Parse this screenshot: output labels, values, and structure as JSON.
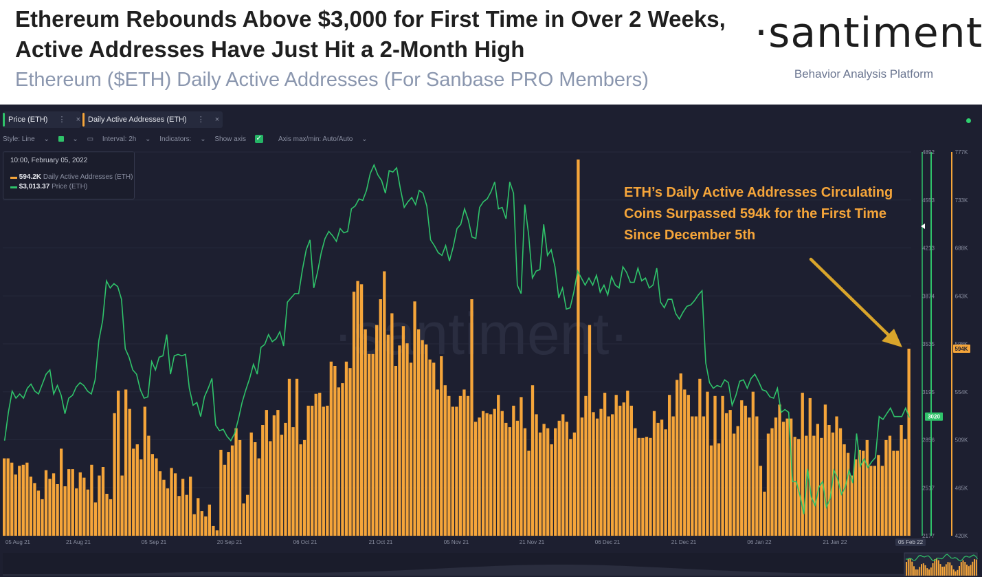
{
  "header": {
    "title": "Ethereum Rebounds Above $3,000 for First Time in Over 2 Weeks, Active Addresses Have Just Hit a 2-Month High",
    "subtitle": "Ethereum ($ETH) Daily Active Addresses (For Sanbase PRO Members)",
    "logo": "·santiment·",
    "logo_sub": "Behavior Analysis Platform"
  },
  "chips": [
    {
      "label": "Price (ETH)",
      "color": "#2fc36a"
    },
    {
      "label": "Daily Active Addresses (ETH)",
      "color": "#f5a53a"
    }
  ],
  "chip_controls": {
    "more": "⋮",
    "close": "×"
  },
  "toolbar": {
    "style": "Style: Line",
    "interval": "Interval: 2h",
    "indicators": "Indicators:",
    "show_axis": "Show axis",
    "axis_maxmin": "Axis max/min: Auto/Auto"
  },
  "tooltip": {
    "date": "10:00, February 05, 2022",
    "daa_value": "594.2K",
    "daa_label": "Daily Active Addresses (ETH)",
    "price_value": "$3,013.37",
    "price_label": "Price (ETH)"
  },
  "annotation": "ETH’s Daily Active Addresses Circulating Coins Surpassed 594k for the First Time Since December 5th",
  "watermark": "·santiment·",
  "chart_data": {
    "type": "bar",
    "colors": {
      "daa": "#f5a53a",
      "price": "#2fc36a",
      "background": "#1d1f30"
    },
    "x_ticks": [
      "05 Aug 21",
      "21 Aug 21",
      "05 Sep 21",
      "20 Sep 21",
      "06 Oct 21",
      "21 Oct 21",
      "05 Nov 21",
      "21 Nov 21",
      "06 Dec 21",
      "21 Dec 21",
      "06 Jan 22",
      "21 Jan 22",
      "05 Feb 22"
    ],
    "price_axis": {
      "ticks": [
        "4892",
        "4553",
        "4213",
        "3874",
        "3535",
        "3195",
        "2856",
        "2517",
        "2177"
      ],
      "ylim": [
        2177,
        4892
      ],
      "current_label": "3020"
    },
    "daa_axis": {
      "ticks": [
        "777K",
        "733K",
        "688K",
        "643K",
        "598K",
        "554K",
        "509K",
        "465K",
        "420K"
      ],
      "ylim": [
        420000,
        777000
      ],
      "current_label": "594K"
    },
    "series": [
      {
        "name": "Daily Active Addresses (ETH)",
        "kind": "bar",
        "values": [
          492,
          492,
          488,
          477,
          485,
          486,
          488,
          475,
          469,
          462,
          454,
          481,
          473,
          478,
          468,
          501,
          466,
          482,
          482,
          464,
          479,
          474,
          463,
          486,
          451,
          476,
          484,
          459,
          454,
          534,
          555,
          476,
          556,
          538,
          501,
          505,
          491,
          540,
          513,
          496,
          492,
          480,
          472,
          464,
          483,
          478,
          457,
          473,
          458,
          475,
          440,
          455,
          443,
          438,
          449,
          429,
          425,
          500,
          486,
          498,
          504,
          520,
          509,
          450,
          458,
          516,
          507,
          492,
          523,
          537,
          508,
          532,
          537,
          514,
          525,
          566,
          521,
          566,
          505,
          509,
          541,
          541,
          552,
          553,
          540,
          541,
          582,
          578,
          558,
          562,
          582,
          576,
          647,
          657,
          654,
          612,
          589,
          589,
          616,
          640,
          666,
          607,
          627,
          578,
          597,
          615,
          599,
          581,
          638,
          612,
          602,
          598,
          584,
          581,
          556,
          587,
          560,
          550,
          540,
          540,
          550,
          556,
          550,
          640,
          526,
          530,
          536,
          534,
          533,
          538,
          551,
          536,
          525,
          521,
          541,
          527,
          549,
          520,
          499,
          560,
          533,
          516,
          524,
          520,
          505,
          520,
          527,
          533,
          526,
          510,
          516,
          770,
          530,
          550,
          616,
          535,
          529,
          538,
          553,
          531,
          533,
          551,
          541,
          544,
          555,
          541,
          520,
          511,
          511,
          512,
          511,
          536,
          525,
          528,
          519,
          551,
          531,
          565,
          571,
          556,
          551,
          531,
          531,
          566,
          531,
          554,
          504,
          550,
          506,
          550,
          534,
          537,
          515,
          522,
          546,
          541,
          530,
          554,
          531,
          485,
          461,
          515,
          520,
          530,
          542,
          526,
          529,
          529,
          512,
          510,
          553,
          513,
          548,
          513,
          524,
          511,
          542,
          523,
          516,
          531,
          520,
          505,
          497,
          476,
          491,
          500,
          499,
          509,
          485,
          485,
          495,
          485,
          509,
          513,
          499,
          499,
          523,
          510,
          594
        ]
      },
      {
        "name": "Price (ETH)",
        "kind": "line",
        "values": [
          2850,
          3050,
          3200,
          3150,
          3180,
          3150,
          3220,
          3250,
          3200,
          3180,
          3250,
          3320,
          3350,
          3180,
          3240,
          3170,
          3040,
          3150,
          3170,
          3230,
          3260,
          3240,
          3200,
          3180,
          3280,
          3560,
          3700,
          3980,
          3930,
          3960,
          3940,
          3850,
          3500,
          3440,
          3350,
          3320,
          3210,
          3150,
          3160,
          3410,
          3350,
          3440,
          3450,
          3600,
          3320,
          3450,
          3460,
          3450,
          3460,
          3220,
          3100,
          3120,
          3020,
          3160,
          3220,
          3290,
          2960,
          2920,
          2930,
          2880,
          2850,
          2900,
          3000,
          3120,
          3210,
          3290,
          3390,
          3320,
          3510,
          3530,
          3600,
          3550,
          3570,
          3620,
          3520,
          3830,
          3860,
          3890,
          3890,
          4060,
          4200,
          4270,
          3930,
          4040,
          4180,
          4280,
          4330,
          4300,
          4260,
          4350,
          4320,
          4330,
          4490,
          4510,
          4560,
          4550,
          4620,
          4740,
          4800,
          4730,
          4690,
          4600,
          4760,
          4750,
          4780,
          4630,
          4500,
          4540,
          4570,
          4520,
          4620,
          4600,
          4510,
          4270,
          4230,
          4180,
          4160,
          4230,
          4120,
          4220,
          4350,
          4380,
          4490,
          4410,
          4290,
          4280,
          4500,
          4540,
          4560,
          4610,
          4680,
          4490,
          4500,
          4420,
          4680,
          4600,
          3950,
          3890,
          4520,
          4310,
          4000,
          4050,
          4060,
          4380,
          4160,
          4200,
          4080,
          3860,
          3930,
          3780,
          3790,
          3900,
          4050,
          4000,
          3950,
          4000,
          3950,
          4020,
          3900,
          3950,
          3880,
          4010,
          3950,
          3930,
          4080,
          4040,
          3970,
          3970,
          4070,
          3980,
          4000,
          3930,
          3950,
          4070,
          3830,
          3790,
          3850,
          3850,
          3750,
          3710,
          3760,
          3800,
          3810,
          3840,
          3880,
          3910,
          3400,
          3260,
          3220,
          3240,
          3230,
          3280,
          3260,
          3100,
          3170,
          3270,
          3280,
          3220,
          3290,
          3320,
          3270,
          3210,
          3200,
          3160,
          3150,
          3220,
          3050,
          3070,
          3050,
          2560,
          2560,
          2460,
          2330,
          2650,
          2450,
          2390,
          2520,
          2560,
          2380,
          2440,
          2640,
          2580,
          2470,
          2520,
          2640,
          2550,
          2900,
          2670,
          2720,
          2660,
          2700,
          2730,
          3020,
          3000,
          3040,
          3080,
          3020,
          3020,
          3020,
          3080,
          3013
        ]
      }
    ]
  }
}
